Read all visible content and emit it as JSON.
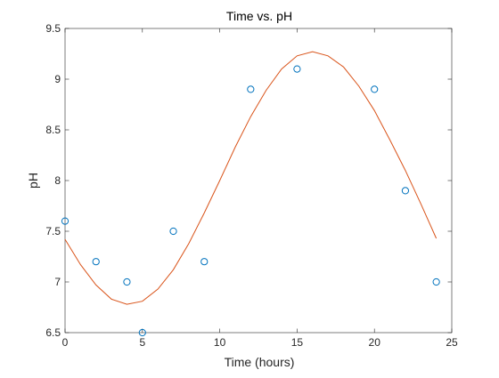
{
  "chart_data": {
    "type": "scatter",
    "title": "Time vs. pH",
    "xlabel": "Time (hours)",
    "ylabel": "pH",
    "xlim": [
      0,
      25
    ],
    "ylim": [
      6.5,
      9.5
    ],
    "xticks": [
      0,
      5,
      10,
      15,
      20,
      25
    ],
    "xtick_labels": [
      "0",
      "5",
      "10",
      "15",
      "20",
      "25"
    ],
    "yticks": [
      6.5,
      7,
      7.5,
      8,
      8.5,
      9,
      9.5
    ],
    "ytick_labels": [
      "6.5",
      "7",
      "7.5",
      "8",
      "8.5",
      "9",
      "9.5"
    ],
    "grid": false,
    "series": [
      {
        "kind": "markers",
        "marker": "circle-open",
        "color": "#0072BD",
        "x": [
          0,
          2,
          4,
          5,
          7,
          9,
          12,
          15,
          20,
          22,
          24
        ],
        "y": [
          7.6,
          7.2,
          7.0,
          6.5,
          7.5,
          7.2,
          8.9,
          9.1,
          8.9,
          7.9,
          7.0
        ]
      },
      {
        "kind": "line",
        "color": "#D95319",
        "x": [
          0,
          1,
          2,
          3,
          4,
          5,
          6,
          7,
          8,
          9,
          10,
          11,
          12,
          13,
          14,
          15,
          16,
          17,
          18,
          19,
          20,
          21,
          22,
          23,
          24
        ],
        "y": [
          7.42,
          7.17,
          6.97,
          6.83,
          6.78,
          6.81,
          6.93,
          7.12,
          7.38,
          7.68,
          8.0,
          8.33,
          8.63,
          8.89,
          9.1,
          9.23,
          9.27,
          9.23,
          9.12,
          8.93,
          8.69,
          8.4,
          8.1,
          7.77,
          7.43
        ]
      }
    ]
  }
}
